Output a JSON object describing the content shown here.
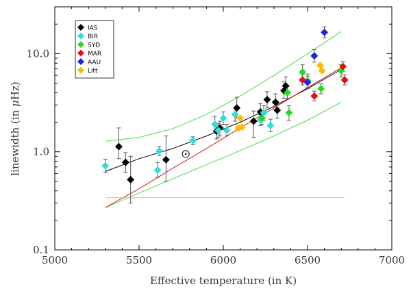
{
  "chart_data": {
    "type": "scatter",
    "xlabel": "Effective temperature (in K)",
    "ylabel_prefix": "linewidth (in ",
    "ylabel_mu": "μ",
    "ylabel_suffix": "Hz)",
    "xlim": [
      5000,
      7000
    ],
    "ylim": [
      0.1,
      30
    ],
    "yscale": "log",
    "x_ticks": [
      5000,
      5500,
      6000,
      6500,
      7000
    ],
    "x_tick_labels": [
      "5000",
      "5500",
      "6000",
      "6500",
      "7000"
    ],
    "y_ticks": [
      0.1,
      1.0,
      10.0
    ],
    "y_tick_labels": [
      "0.1",
      "1.0",
      "10.0"
    ],
    "legend_position": "top-left",
    "series": [
      {
        "name": "IAS",
        "color": "#000000",
        "points": [
          {
            "x": 5380,
            "y": 1.13,
            "lo": 0.85,
            "hi": 1.75
          },
          {
            "x": 5420,
            "y": 0.78,
            "lo": 0.62,
            "hi": 0.98
          },
          {
            "x": 5450,
            "y": 0.52,
            "lo": 0.3,
            "hi": 0.9
          },
          {
            "x": 5660,
            "y": 0.83,
            "lo": 0.5,
            "hi": 1.45
          },
          {
            "x": 5960,
            "y": 1.62,
            "lo": 1.35,
            "hi": 1.95
          },
          {
            "x": 5980,
            "y": 1.75,
            "lo": 1.45,
            "hi": 2.05
          },
          {
            "x": 6080,
            "y": 2.8,
            "lo": 2.2,
            "hi": 3.6
          },
          {
            "x": 6180,
            "y": 2.05,
            "lo": 1.4,
            "hi": 2.6
          },
          {
            "x": 6220,
            "y": 2.55,
            "lo": 2.1,
            "hi": 3.1
          },
          {
            "x": 6260,
            "y": 3.4,
            "lo": 2.8,
            "hi": 4.1
          },
          {
            "x": 6310,
            "y": 3.2,
            "lo": 2.7,
            "hi": 3.9
          },
          {
            "x": 6320,
            "y": 2.65,
            "lo": 2.2,
            "hi": 3.1
          },
          {
            "x": 6360,
            "y": 4.2,
            "lo": 3.5,
            "hi": 5.2
          },
          {
            "x": 6370,
            "y": 4.7,
            "lo": 3.9,
            "hi": 5.8
          }
        ]
      },
      {
        "name": "BIR",
        "color": "#33dddd",
        "points": [
          {
            "x": 5300,
            "y": 0.72,
            "lo": 0.62,
            "hi": 0.84
          },
          {
            "x": 5610,
            "y": 0.65,
            "lo": 0.55,
            "hi": 0.78
          },
          {
            "x": 5620,
            "y": 1.02,
            "lo": 0.92,
            "hi": 1.13
          },
          {
            "x": 5820,
            "y": 1.3,
            "lo": 1.18,
            "hi": 1.42
          },
          {
            "x": 5950,
            "y": 1.9,
            "lo": 1.55,
            "hi": 2.3
          },
          {
            "x": 5970,
            "y": 1.65,
            "lo": 1.4,
            "hi": 1.95
          },
          {
            "x": 6000,
            "y": 2.2,
            "lo": 1.9,
            "hi": 2.55
          },
          {
            "x": 6020,
            "y": 1.65,
            "lo": 1.45,
            "hi": 1.9
          },
          {
            "x": 6070,
            "y": 2.4,
            "lo": 2.05,
            "hi": 2.8
          },
          {
            "x": 6220,
            "y": 2.1,
            "lo": 1.85,
            "hi": 2.4
          },
          {
            "x": 6240,
            "y": 2.5,
            "lo": 2.1,
            "hi": 2.95
          },
          {
            "x": 6280,
            "y": 1.85,
            "lo": 1.6,
            "hi": 2.15
          }
        ]
      },
      {
        "name": "SYD",
        "color": "#22dd22",
        "points": [
          {
            "x": 6230,
            "y": 2.2,
            "lo": 1.9,
            "hi": 2.55
          },
          {
            "x": 6380,
            "y": 4.0,
            "lo": 3.5,
            "hi": 4.6
          },
          {
            "x": 6390,
            "y": 2.5,
            "lo": 2.1,
            "hi": 2.95
          },
          {
            "x": 6470,
            "y": 6.5,
            "lo": 5.5,
            "hi": 7.7
          },
          {
            "x": 6500,
            "y": 5.3,
            "lo": 4.5,
            "hi": 6.2
          },
          {
            "x": 6580,
            "y": 4.4,
            "lo": 3.9,
            "hi": 4.95
          },
          {
            "x": 6700,
            "y": 6.7,
            "lo": 5.8,
            "hi": 7.7
          }
        ]
      },
      {
        "name": "MAR",
        "color": "#dd1111",
        "points": [
          {
            "x": 6470,
            "y": 5.4,
            "lo": 4.8,
            "hi": 6.1
          },
          {
            "x": 6540,
            "y": 3.7,
            "lo": 3.3,
            "hi": 4.15
          },
          {
            "x": 6710,
            "y": 7.4,
            "lo": 6.6,
            "hi": 8.3
          },
          {
            "x": 6720,
            "y": 5.4,
            "lo": 4.8,
            "hi": 6.1
          }
        ]
      },
      {
        "name": "AAU",
        "color": "#2222dd",
        "points": [
          {
            "x": 6500,
            "y": 5.1,
            "lo": 4.4,
            "hi": 5.9
          },
          {
            "x": 6540,
            "y": 9.5,
            "lo": 8.2,
            "hi": 11.0
          },
          {
            "x": 6600,
            "y": 16.5,
            "lo": 14.5,
            "hi": 18.8
          }
        ]
      },
      {
        "name": "Litt",
        "color": "#ffbb00",
        "points": [
          {
            "x": 6090,
            "y": 1.75
          },
          {
            "x": 6110,
            "y": 1.78
          },
          {
            "x": 6100,
            "y": 2.2
          },
          {
            "x": 6575,
            "y": 7.6
          },
          {
            "x": 6585,
            "y": 6.7
          }
        ]
      }
    ],
    "sun": {
      "label": "Sun",
      "x": 5777,
      "y": 0.95
    },
    "fit_lines": [
      {
        "name": "upper-envelope",
        "color": "#44dd44",
        "x": [
          5300,
          5500,
          5700,
          5900,
          6100,
          6300,
          6500,
          6700
        ],
        "y": [
          1.28,
          1.4,
          1.72,
          2.4,
          3.7,
          6.0,
          10.0,
          16.8
        ]
      },
      {
        "name": "lower-envelope",
        "color": "#44dd44",
        "x": [
          5300,
          5500,
          5700,
          5900,
          6100,
          6300,
          6500,
          6700
        ],
        "y": [
          0.27,
          0.38,
          0.53,
          0.74,
          1.03,
          1.45,
          2.1,
          3.2
        ]
      },
      {
        "name": "black-fit",
        "color": "#000000",
        "x": [
          5300,
          5500,
          5700,
          5900,
          6100,
          6300,
          6500,
          6700
        ],
        "y": [
          0.63,
          0.85,
          1.08,
          1.45,
          2.0,
          2.9,
          4.4,
          6.9
        ]
      },
      {
        "name": "red-fit",
        "color": "#dd1111",
        "x": [
          5300,
          5500,
          5700,
          5900,
          6100,
          6300,
          6500,
          6700
        ],
        "y": [
          0.27,
          0.42,
          0.68,
          1.08,
          1.75,
          2.8,
          4.5,
          7.2
        ]
      },
      {
        "name": "yellow-baseline",
        "color": "#e8c060",
        "x": [
          5300,
          6720
        ],
        "y": [
          0.34,
          0.34
        ]
      }
    ]
  }
}
